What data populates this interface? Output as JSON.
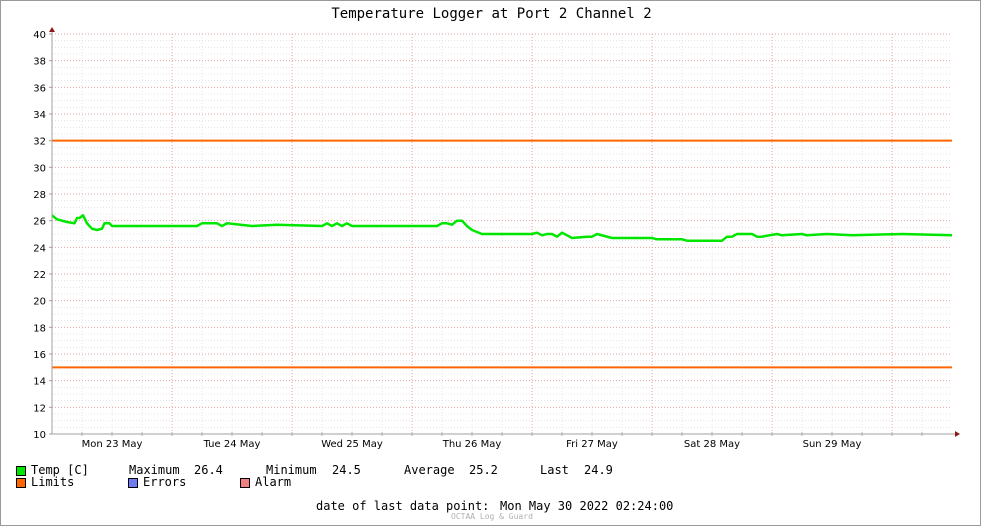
{
  "chart_data": {
    "type": "line",
    "title": "Temperature Logger at Port 2 Channel 2",
    "xlabel": "",
    "ylabel": "",
    "ylim": [
      10,
      40
    ],
    "yticks": [
      10,
      12,
      14,
      16,
      18,
      20,
      22,
      24,
      26,
      28,
      30,
      32,
      34,
      36,
      38,
      40
    ],
    "x_range_hours": [
      0,
      180
    ],
    "xtick_labels": [
      {
        "label": "Mon 23 May",
        "hour": 12
      },
      {
        "label": "Tue 24 May",
        "hour": 36
      },
      {
        "label": "Wed 25 May",
        "hour": 60
      },
      {
        "label": "Thu 26 May",
        "hour": 84
      },
      {
        "label": "Fri 27 May",
        "hour": 108
      },
      {
        "label": "Sat 28 May",
        "hour": 132
      },
      {
        "label": "Sun 29 May",
        "hour": 156
      }
    ],
    "day_boundaries_hours": [
      24,
      48,
      72,
      96,
      120,
      144,
      168
    ],
    "grid": true,
    "series": [
      {
        "name": "Temp [C]",
        "color": "#00e600",
        "x": [
          0,
          1,
          2,
          3,
          4.5,
          5,
          5.5,
          6.2,
          7,
          8,
          9,
          10,
          10.5,
          11.5,
          12,
          15,
          20,
          29,
          30,
          31,
          32,
          33,
          34,
          35,
          40,
          45,
          54,
          55,
          56,
          57,
          58,
          59,
          60,
          70,
          77,
          78,
          79,
          80,
          81,
          82,
          83,
          84,
          86,
          96,
          97,
          98,
          99,
          100,
          101,
          102,
          103,
          104,
          107,
          108,
          109,
          112,
          113,
          120,
          121,
          126,
          127,
          128,
          129,
          130,
          134,
          135,
          136,
          137,
          140,
          141,
          142,
          145,
          146,
          150,
          151,
          155,
          160,
          170,
          180
        ],
        "y": [
          26.4,
          26.1,
          26.0,
          25.9,
          25.8,
          26.2,
          26.2,
          26.4,
          25.8,
          25.4,
          25.3,
          25.4,
          25.8,
          25.8,
          25.6,
          25.6,
          25.6,
          25.6,
          25.8,
          25.8,
          25.8,
          25.8,
          25.6,
          25.8,
          25.6,
          25.7,
          25.6,
          25.8,
          25.6,
          25.8,
          25.6,
          25.8,
          25.6,
          25.6,
          25.6,
          25.8,
          25.8,
          25.7,
          26.0,
          26.0,
          25.6,
          25.3,
          25.0,
          25.0,
          25.1,
          24.9,
          25.0,
          25.0,
          24.8,
          25.1,
          24.9,
          24.7,
          24.8,
          24.8,
          25.0,
          24.7,
          24.7,
          24.7,
          24.6,
          24.6,
          24.5,
          24.5,
          24.5,
          24.5,
          24.5,
          24.8,
          24.8,
          25.0,
          25.0,
          24.8,
          24.8,
          25.0,
          24.9,
          25.0,
          24.9,
          25.0,
          24.9,
          25.0,
          24.9
        ]
      },
      {
        "name": "Limits",
        "color": "#ff6600",
        "values": [
          32,
          15
        ]
      }
    ]
  },
  "legend": {
    "temp_label": "Temp [C]",
    "max_label": "Maximum",
    "max_value": "26.4",
    "min_label": "Minimum",
    "min_value": "24.5",
    "avg_label": "Average",
    "avg_value": "25.2",
    "last_label": "Last",
    "last_value": "24.9",
    "limits_label": "Limits",
    "errors_label": "Errors",
    "alarm_label": "Alarm",
    "colors": {
      "temp": "#00e600",
      "limits": "#ff6600",
      "errors": "#6f7bf0",
      "alarm": "#f08080"
    }
  },
  "footer": {
    "last_point_label": "date of last data point:",
    "last_point_value": "Mon May 30 2022 02:24:00",
    "watermark": "OCTAA Log & Guard"
  }
}
